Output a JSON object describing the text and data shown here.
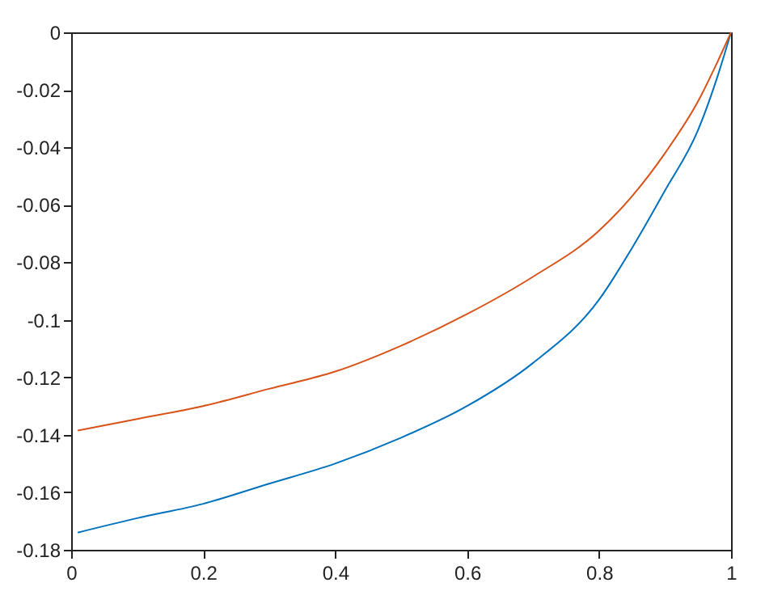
{
  "chart_data": {
    "type": "line",
    "x": [
      0.01,
      0.1,
      0.2,
      0.3,
      0.4,
      0.5,
      0.6,
      0.7,
      0.8,
      0.85,
      0.9,
      0.95,
      0.98,
      1
    ],
    "series": [
      {
        "color": "#0072bd",
        "values": [
          -0.174,
          -0.169,
          -0.164,
          -0.157,
          -0.15,
          -0.141,
          -0.13,
          -0.115,
          -0.093,
          -0.075,
          -0.055,
          -0.034,
          -0.015,
          0
        ]
      },
      {
        "color": "#d95319",
        "values": [
          -0.1385,
          -0.1345,
          -0.13,
          -0.124,
          -0.118,
          -0.109,
          -0.098,
          -0.085,
          -0.069,
          -0.057,
          -0.042,
          -0.024,
          -0.01,
          0
        ]
      }
    ],
    "xlim": [
      0,
      1
    ],
    "xticks": [
      0,
      0.2,
      0.4,
      0.6,
      0.8,
      1
    ],
    "ylim": [
      -0.18,
      0
    ],
    "yticks": [
      -0.18,
      -0.16,
      -0.14,
      -0.12,
      -0.1,
      -0.08,
      -0.06,
      -0.04,
      -0.02,
      0
    ],
    "grid": false,
    "line_style": "solid",
    "marker": "none"
  }
}
